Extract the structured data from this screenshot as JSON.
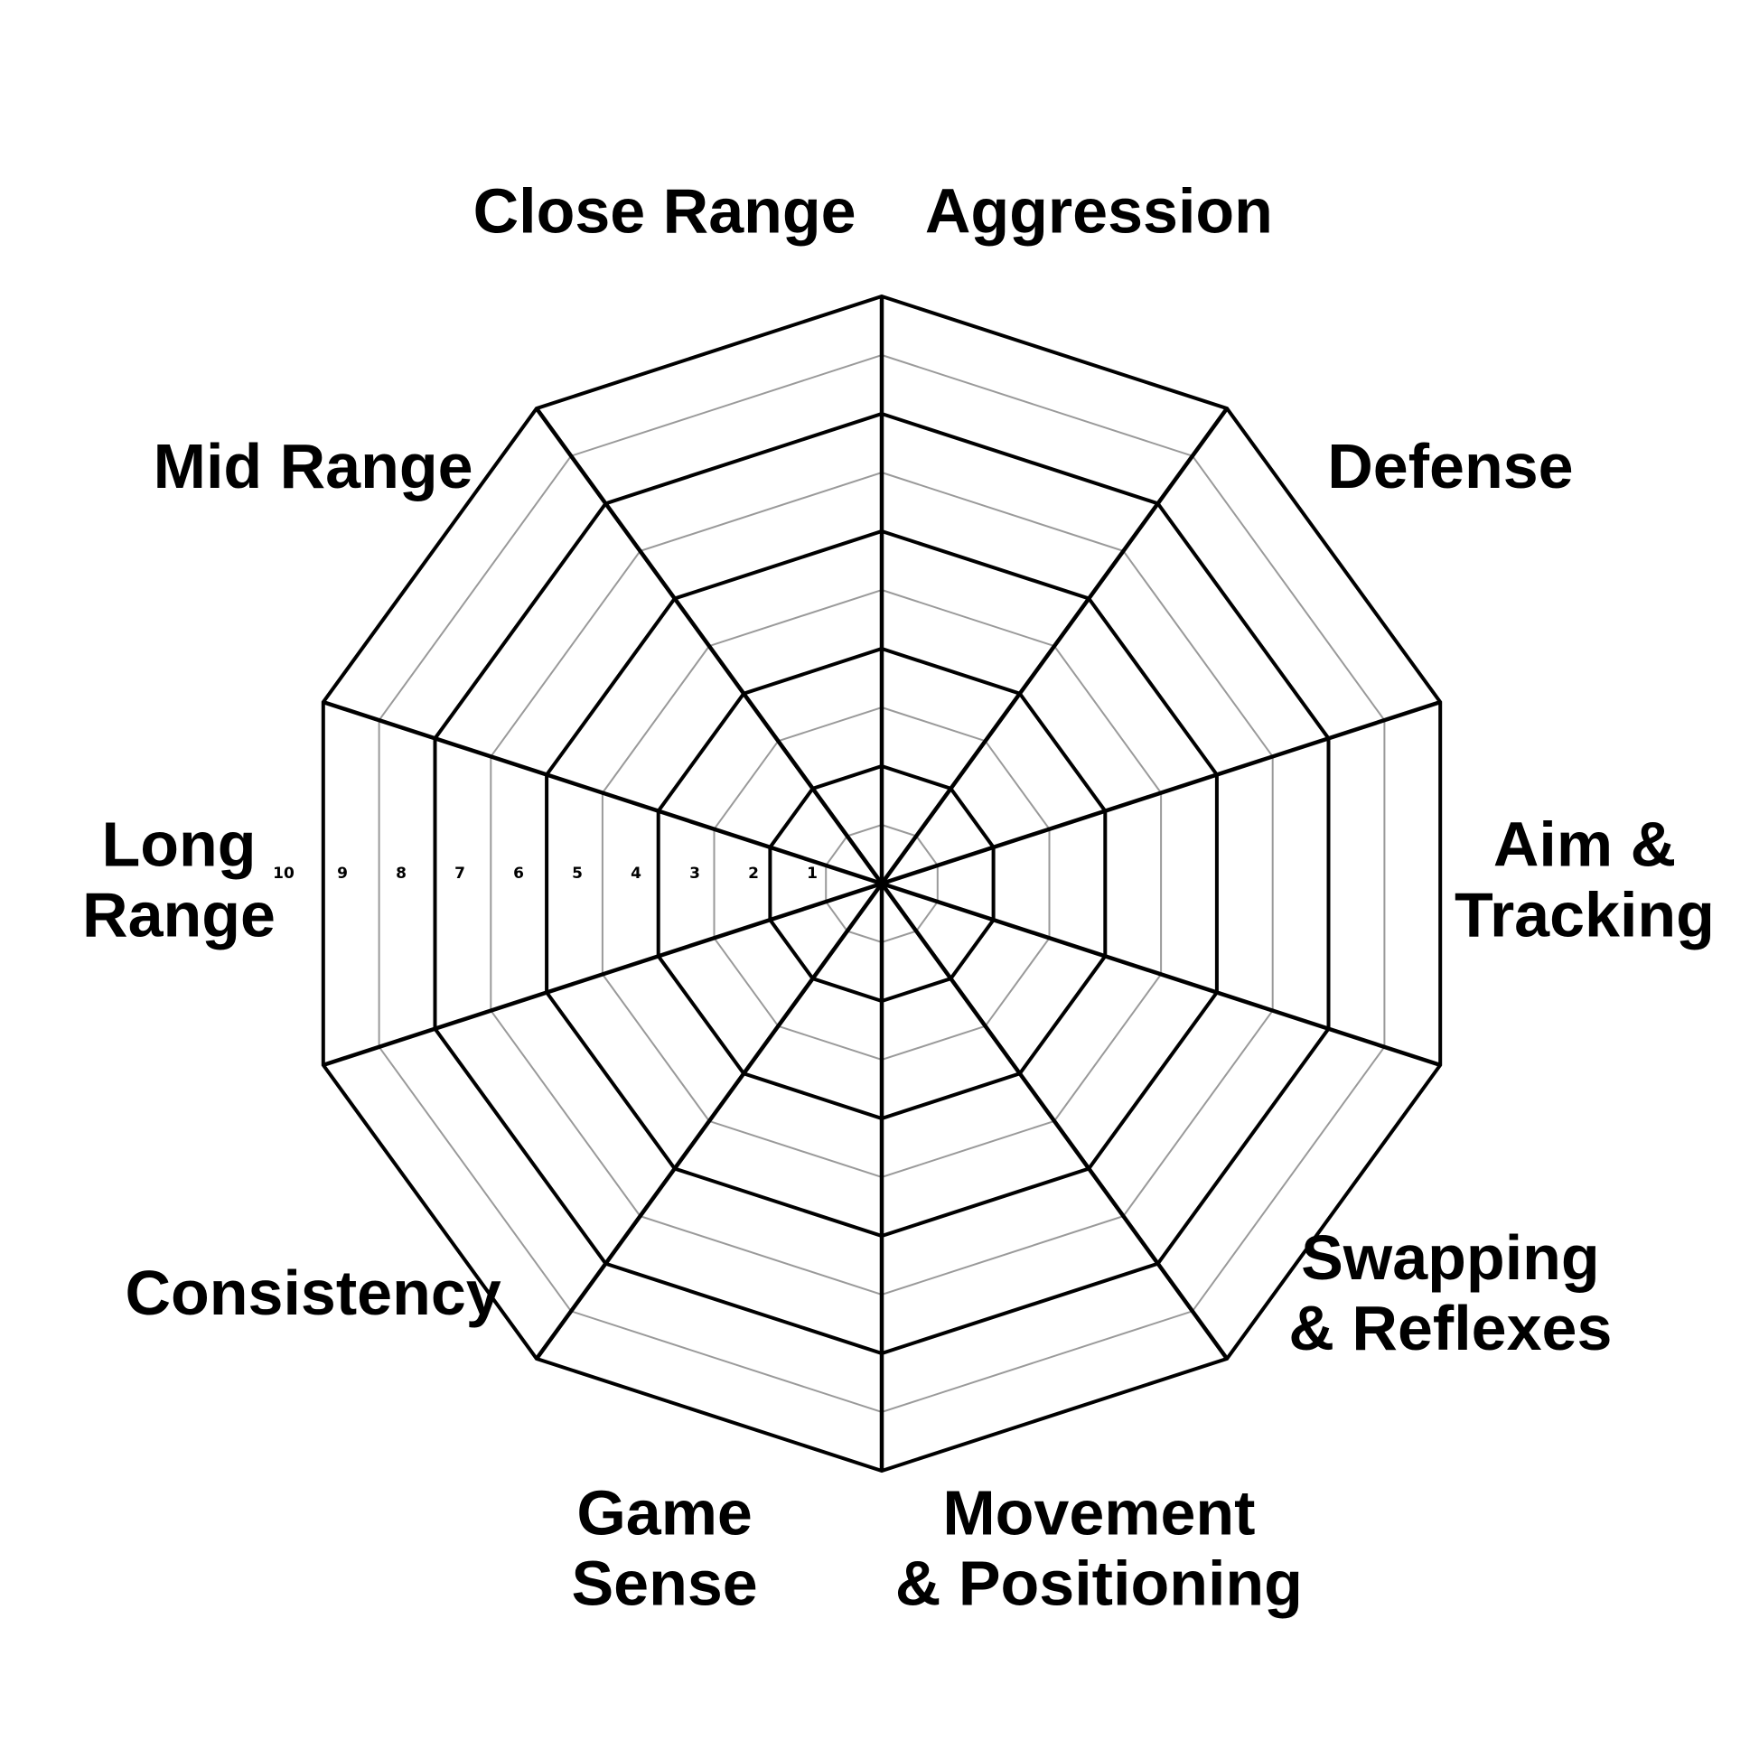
{
  "chart_data": {
    "type": "radar",
    "title": "",
    "axes": [
      "Aggression",
      "Defense",
      "Aim & Tracking",
      "Swapping & Reflexes",
      "Movement & Positioning",
      "Game Sense",
      "Consistency",
      "Long Range",
      "Mid Range",
      "Close Range"
    ],
    "axis_label_lines": [
      [
        "Aggression"
      ],
      [
        "Defense"
      ],
      [
        "Aim &",
        "Tracking"
      ],
      [
        "Swapping",
        "& Reflexes"
      ],
      [
        "Movement",
        "& Positioning"
      ],
      [
        "Game",
        "Sense"
      ],
      [
        "Consistency"
      ],
      [
        "Long",
        "Range"
      ],
      [
        "Mid Range"
      ],
      [
        "Close Range"
      ]
    ],
    "range": [
      0,
      10
    ],
    "tick_labels": [
      "1",
      "2",
      "3",
      "4",
      "5",
      "6",
      "7",
      "8",
      "9",
      "10"
    ],
    "major_ring_levels": [
      2,
      4,
      6,
      8,
      10
    ],
    "minor_ring_levels": [
      1,
      3,
      5,
      7,
      9
    ],
    "tick_axis": "Long Range",
    "series": [],
    "grid": true
  }
}
